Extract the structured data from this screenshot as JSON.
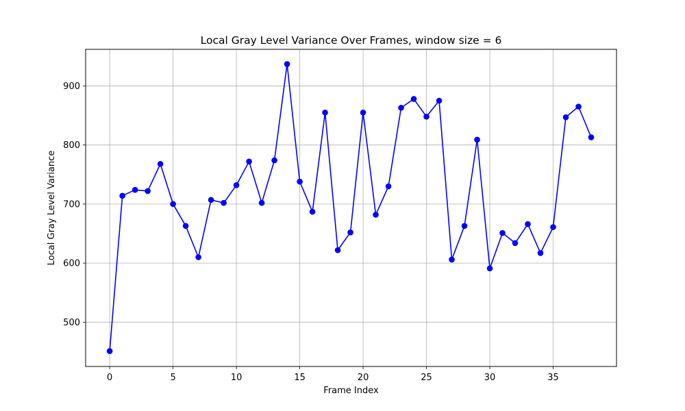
{
  "chart_data": {
    "type": "line",
    "title": "Local Gray Level Variance Over Frames, window size = 6",
    "xlabel": "Frame Index",
    "ylabel": "Local Gray Level Variance",
    "xlim": [
      -1.9,
      40.0
    ],
    "ylim": [
      425,
      962
    ],
    "xticks": [
      0,
      5,
      10,
      15,
      20,
      25,
      30,
      35
    ],
    "yticks": [
      500,
      600,
      700,
      800,
      900
    ],
    "grid": true,
    "legend": "none",
    "series": [
      {
        "color": "#0000ff",
        "marker": "circle",
        "x": [
          0,
          1,
          2,
          3,
          4,
          5,
          6,
          7,
          8,
          9,
          10,
          11,
          12,
          13,
          14,
          15,
          16,
          17,
          18,
          19,
          20,
          21,
          22,
          23,
          24,
          25,
          26,
          27,
          28,
          29,
          30,
          31,
          32,
          33,
          34,
          35,
          36,
          37,
          38
        ],
        "values": [
          451,
          714,
          724,
          722,
          768,
          700,
          663,
          610,
          707,
          702,
          732,
          772,
          702,
          774,
          937,
          738,
          687,
          855,
          622,
          652,
          855,
          682,
          730,
          863,
          878,
          848,
          875,
          606,
          663,
          809,
          591,
          651,
          634,
          666,
          617,
          661,
          847,
          865,
          813
        ]
      }
    ]
  }
}
